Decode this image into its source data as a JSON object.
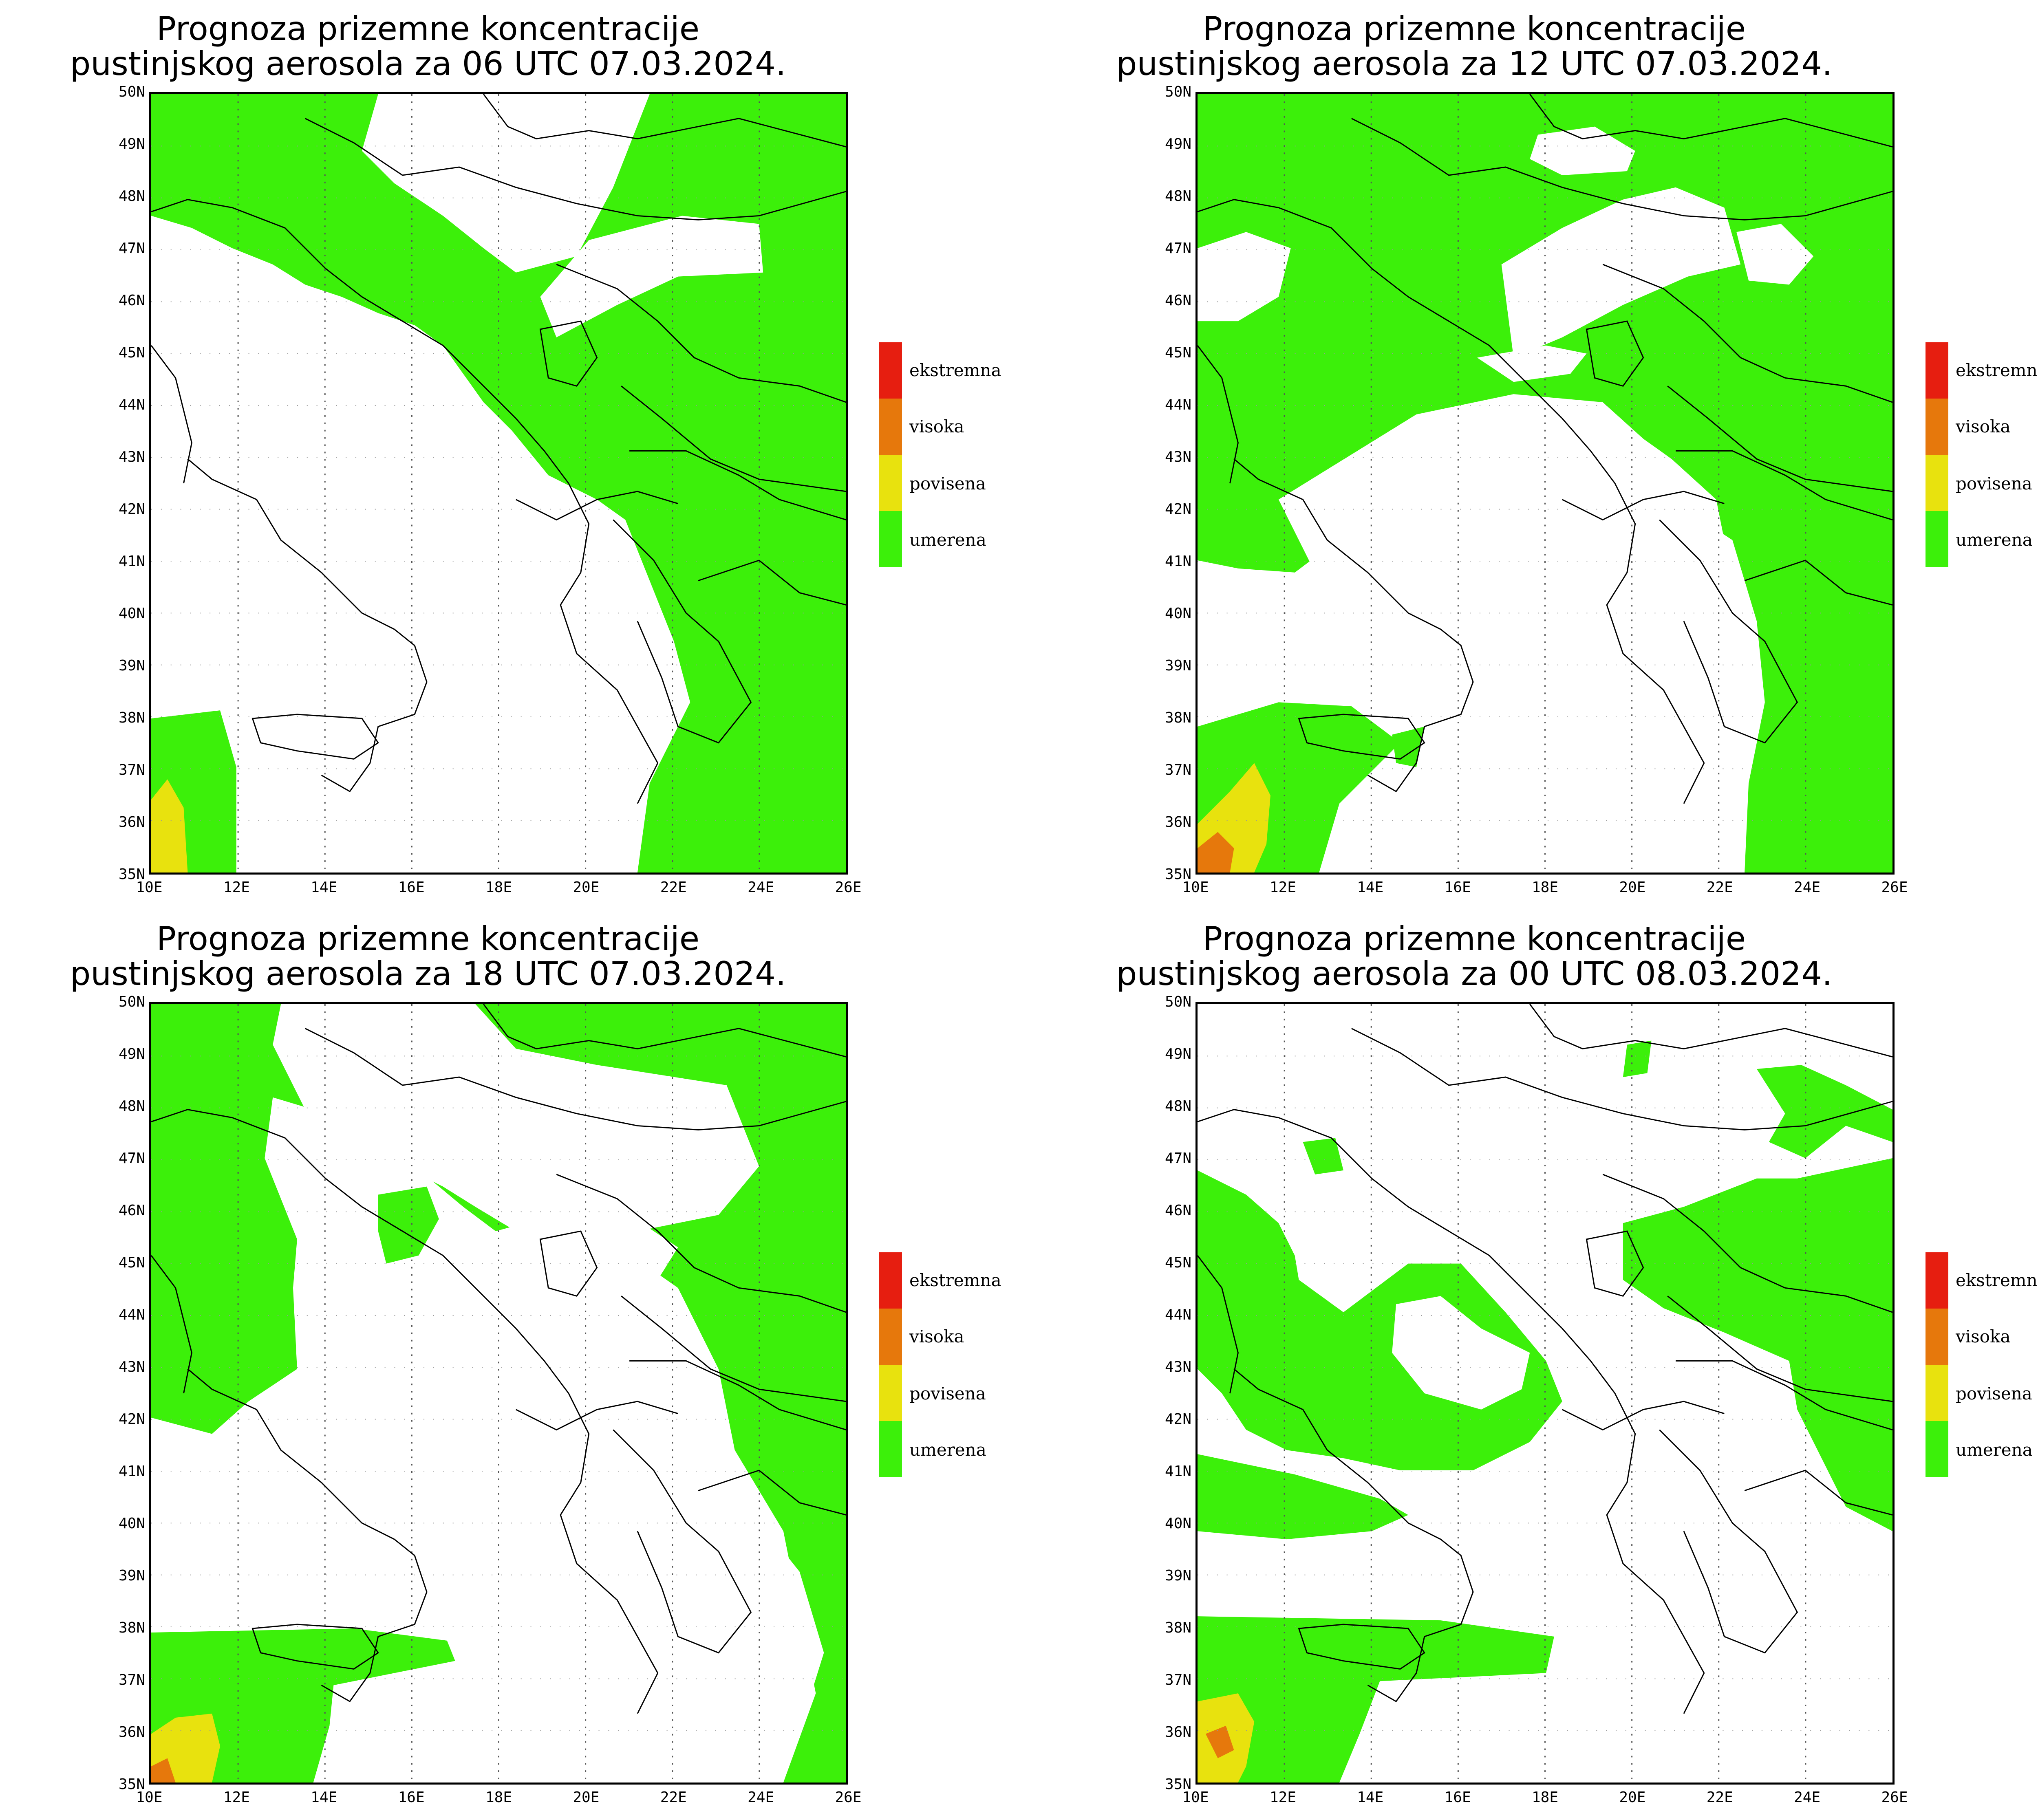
{
  "map_data": {
    "region": "Balkans / Central Mediterranean",
    "lon_range": [
      10,
      26
    ],
    "lat_range": [
      35,
      50
    ],
    "gridlines": "dotted meridians every 2 degrees",
    "lat_labels": [
      "50N",
      "49N",
      "48N",
      "47N",
      "46N",
      "45N",
      "44N",
      "43N",
      "42N",
      "41N",
      "40N",
      "39N",
      "38N",
      "37N",
      "36N",
      "35N"
    ],
    "lon_labels": [
      "10E",
      "12E",
      "14E",
      "16E",
      "18E",
      "20E",
      "22E",
      "24E",
      "26E"
    ]
  },
  "legend": {
    "items": [
      {
        "label": "ekstremna",
        "color": "#e61e10"
      },
      {
        "label": "visoka",
        "color": "#e6780c"
      },
      {
        "label": "povisena",
        "color": "#e8e20e"
      },
      {
        "label": "umerena",
        "color": "#3cf00a"
      }
    ]
  },
  "panels": [
    {
      "title_line1": "Prognoza prizemne koncentracije",
      "title_line2": "pustinjskog aerosola za 06 UTC 07.03.2024."
    },
    {
      "title_line1": "Prognoza prizemne koncentracije",
      "title_line2": "pustinjskog aerosola za 12 UTC 07.03.2024."
    },
    {
      "title_line1": "Prognoza prizemne koncentracije",
      "title_line2": "pustinjskog aerosola za 18 UTC 07.03.2024."
    },
    {
      "title_line1": "Prognoza prizemne koncentracije",
      "title_line2": "pustinjskog aerosola za 00 UTC 08.03.2024."
    }
  ]
}
